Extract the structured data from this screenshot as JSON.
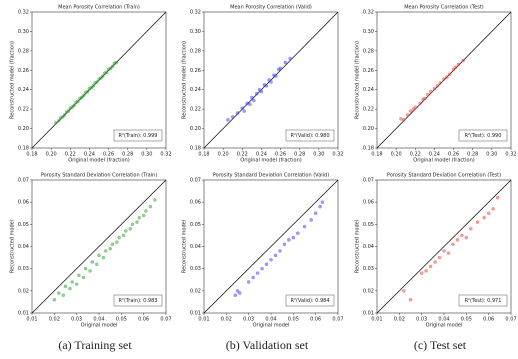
{
  "chart_data": [
    {
      "type": "scatter",
      "title": "Mean Porosity Correlation (Train)",
      "xlabel": "Original model (fraction)",
      "ylabel": "Reconstructed model (fraction)",
      "annotation": "R²(Train): 0.999",
      "xlim": [
        0.18,
        0.32
      ],
      "ylim": [
        0.18,
        0.32
      ],
      "xticks": [
        0.18,
        {
          "value": 0.2,
          "label": "0.20"
        },
        0.22,
        0.24,
        0.26,
        0.28,
        {
          "value": 0.3,
          "label": "0.30"
        },
        0.32
      ],
      "yticks": [
        0.18,
        {
          "value": 0.2,
          "label": "0.20"
        },
        0.22,
        0.24,
        0.26,
        0.28,
        {
          "value": 0.3,
          "label": "0.30"
        },
        0.32
      ],
      "series": [
        {
          "color": "#2ca02c",
          "x": [
            0.205,
            0.208,
            0.21,
            0.212,
            0.214,
            0.216,
            0.218,
            0.22,
            0.222,
            0.224,
            0.226,
            0.228,
            0.23,
            0.232,
            0.234,
            0.236,
            0.238,
            0.24,
            0.242,
            0.244,
            0.246,
            0.248,
            0.25,
            0.252,
            0.254,
            0.256,
            0.258,
            0.26,
            0.262,
            0.264,
            0.266,
            0.268
          ],
          "values": [
            0.206,
            0.208,
            0.211,
            0.212,
            0.214,
            0.217,
            0.218,
            0.221,
            0.222,
            0.224,
            0.227,
            0.228,
            0.231,
            0.232,
            0.234,
            0.237,
            0.238,
            0.241,
            0.242,
            0.244,
            0.247,
            0.248,
            0.251,
            0.252,
            0.254,
            0.257,
            0.258,
            0.261,
            0.262,
            0.264,
            0.267,
            0.268
          ]
        }
      ]
    },
    {
      "type": "scatter",
      "title": "Mean Porosity Correlation (Valid)",
      "xlabel": "Original model (fraction)",
      "ylabel": "Reconstructed model (fraction)",
      "annotation": "R²(Valid): 0.980",
      "xlim": [
        0.18,
        0.32
      ],
      "ylim": [
        0.18,
        0.32
      ],
      "xticks": [
        0.18,
        {
          "value": 0.2,
          "label": "0.20"
        },
        0.22,
        0.24,
        0.26,
        0.28,
        {
          "value": 0.3,
          "label": "0.30"
        },
        0.32
      ],
      "yticks": [
        0.18,
        {
          "value": 0.2,
          "label": "0.20"
        },
        0.22,
        0.24,
        0.26,
        0.28,
        {
          "value": 0.3,
          "label": "0.30"
        },
        0.32
      ],
      "series": [
        {
          "color": "#3b3bff",
          "x": [
            0.205,
            0.21,
            0.215,
            0.22,
            0.222,
            0.225,
            0.228,
            0.23,
            0.232,
            0.235,
            0.238,
            0.24,
            0.243,
            0.245,
            0.248,
            0.25,
            0.253,
            0.255,
            0.258,
            0.26,
            0.265,
            0.27
          ],
          "values": [
            0.209,
            0.212,
            0.216,
            0.221,
            0.218,
            0.226,
            0.225,
            0.232,
            0.229,
            0.236,
            0.24,
            0.238,
            0.245,
            0.244,
            0.25,
            0.248,
            0.255,
            0.254,
            0.261,
            0.262,
            0.268,
            0.272
          ]
        }
      ]
    },
    {
      "type": "scatter",
      "title": "Mean Porosity Correlation (Test)",
      "xlabel": "Original model (fraction)",
      "ylabel": "Reconstructed model (fraction)",
      "annotation": "R²(Test): 0.990",
      "xlim": [
        0.18,
        0.32
      ],
      "ylim": [
        0.18,
        0.32
      ],
      "xticks": [
        0.18,
        {
          "value": 0.2,
          "label": "0.20"
        },
        0.22,
        0.24,
        0.26,
        0.28,
        {
          "value": 0.3,
          "label": "0.30"
        },
        0.32
      ],
      "yticks": [
        0.18,
        {
          "value": 0.2,
          "label": "0.20"
        },
        0.22,
        0.24,
        0.26,
        0.28,
        {
          "value": 0.3,
          "label": "0.30"
        },
        0.32
      ],
      "series": [
        {
          "color": "#e8413c",
          "x": [
            0.205,
            0.208,
            0.212,
            0.215,
            0.218,
            0.22,
            0.225,
            0.228,
            0.23,
            0.233,
            0.236,
            0.24,
            0.243,
            0.246,
            0.25,
            0.253,
            0.256,
            0.26,
            0.262,
            0.265,
            0.27
          ],
          "values": [
            0.21,
            0.209,
            0.214,
            0.218,
            0.22,
            0.222,
            0.226,
            0.23,
            0.231,
            0.235,
            0.238,
            0.241,
            0.244,
            0.247,
            0.251,
            0.253,
            0.256,
            0.261,
            0.263,
            0.266,
            0.27
          ]
        }
      ]
    },
    {
      "type": "scatter",
      "title": "Porosity Standard Deviation Correlation (Train)",
      "xlabel": "Original model",
      "ylabel": "Reconstructed model",
      "annotation": "R²(Train): 0.983",
      "xlim": [
        0.01,
        0.07
      ],
      "ylim": [
        0.01,
        0.07
      ],
      "xticks": [
        0.01,
        0.02,
        0.03,
        0.04,
        0.05,
        0.06,
        0.07
      ],
      "yticks": [
        0.01,
        0.02,
        0.03,
        0.04,
        0.05,
        0.06,
        0.07
      ],
      "series": [
        {
          "color": "#2ca02c",
          "x": [
            0.02,
            0.022,
            0.024,
            0.025,
            0.027,
            0.028,
            0.03,
            0.031,
            0.033,
            0.034,
            0.036,
            0.037,
            0.039,
            0.04,
            0.042,
            0.043,
            0.045,
            0.046,
            0.048,
            0.049,
            0.051,
            0.052,
            0.054,
            0.055,
            0.057,
            0.058,
            0.06,
            0.061,
            0.063,
            0.065
          ],
          "values": [
            0.016,
            0.019,
            0.018,
            0.022,
            0.021,
            0.024,
            0.023,
            0.027,
            0.026,
            0.03,
            0.029,
            0.033,
            0.032,
            0.036,
            0.035,
            0.038,
            0.039,
            0.041,
            0.042,
            0.044,
            0.045,
            0.047,
            0.048,
            0.05,
            0.051,
            0.053,
            0.054,
            0.056,
            0.058,
            0.061
          ]
        }
      ]
    },
    {
      "type": "scatter",
      "title": "Porosity Standard Deviation Correlation (Valid)",
      "xlabel": "Original model",
      "ylabel": "Reconstructed model",
      "annotation": "R²(Valid): 0.984",
      "xlim": [
        0.01,
        0.07
      ],
      "ylim": [
        0.01,
        0.07
      ],
      "xticks": [
        0.01,
        0.02,
        0.03,
        0.04,
        0.05,
        0.06,
        0.07
      ],
      "yticks": [
        0.01,
        0.02,
        0.03,
        0.04,
        0.05,
        0.06,
        0.07
      ],
      "series": [
        {
          "color": "#3b3bff",
          "x": [
            0.024,
            0.025,
            0.026,
            0.03,
            0.032,
            0.034,
            0.036,
            0.038,
            0.04,
            0.042,
            0.044,
            0.046,
            0.048,
            0.05,
            0.052,
            0.055,
            0.058,
            0.06,
            0.062,
            0.063
          ],
          "values": [
            0.018,
            0.02,
            0.019,
            0.024,
            0.026,
            0.028,
            0.03,
            0.032,
            0.034,
            0.036,
            0.038,
            0.041,
            0.043,
            0.044,
            0.046,
            0.049,
            0.052,
            0.055,
            0.058,
            0.06
          ]
        }
      ]
    },
    {
      "type": "scatter",
      "title": "Porosity Standard Deviation Correlation (Test)",
      "xlabel": "Original model",
      "ylabel": "Reconstructed model",
      "annotation": "R²(Test): 0.971",
      "xlim": [
        0.01,
        0.07
      ],
      "ylim": [
        0.01,
        0.07
      ],
      "xticks": [
        0.01,
        0.02,
        0.03,
        0.04,
        0.05,
        0.06,
        0.07
      ],
      "yticks": [
        0.01,
        0.02,
        0.03,
        0.04,
        0.05,
        0.06,
        0.07
      ],
      "series": [
        {
          "color": "#e8413c",
          "x": [
            0.022,
            0.025,
            0.03,
            0.032,
            0.034,
            0.036,
            0.038,
            0.04,
            0.042,
            0.044,
            0.046,
            0.048,
            0.05,
            0.052,
            0.055,
            0.058,
            0.06,
            0.062,
            0.064
          ],
          "values": [
            0.02,
            0.016,
            0.028,
            0.029,
            0.031,
            0.033,
            0.035,
            0.038,
            0.037,
            0.041,
            0.043,
            0.045,
            0.044,
            0.048,
            0.051,
            0.053,
            0.055,
            0.057,
            0.062
          ]
        }
      ]
    }
  ],
  "captions": [
    "(a) Training set",
    "(b) Validation set",
    "(c) Test set"
  ]
}
